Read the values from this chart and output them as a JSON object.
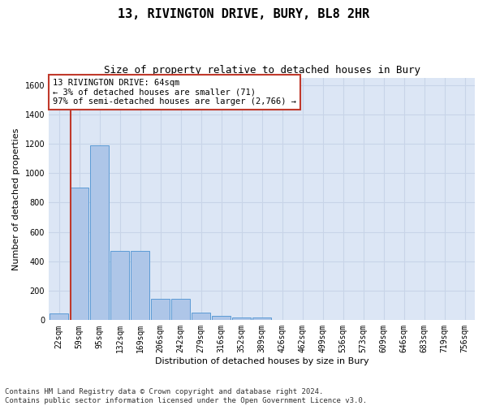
{
  "title": "13, RIVINGTON DRIVE, BURY, BL8 2HR",
  "subtitle": "Size of property relative to detached houses in Bury",
  "xlabel": "Distribution of detached houses by size in Bury",
  "ylabel": "Number of detached properties",
  "bin_labels": [
    "22sqm",
    "59sqm",
    "95sqm",
    "132sqm",
    "169sqm",
    "206sqm",
    "242sqm",
    "279sqm",
    "316sqm",
    "352sqm",
    "389sqm",
    "426sqm",
    "462sqm",
    "499sqm",
    "536sqm",
    "573sqm",
    "609sqm",
    "646sqm",
    "683sqm",
    "719sqm",
    "756sqm"
  ],
  "bar_values": [
    45,
    900,
    1190,
    470,
    470,
    145,
    145,
    50,
    32,
    18,
    18,
    0,
    0,
    0,
    0,
    0,
    0,
    0,
    0,
    0,
    0
  ],
  "bar_color": "#aec6e8",
  "bar_edge_color": "#5b9bd5",
  "vline_color": "#c0392b",
  "vline_x_pos": 0.575,
  "annotation_text": "13 RIVINGTON DRIVE: 64sqm\n← 3% of detached houses are smaller (71)\n97% of semi-detached houses are larger (2,766) →",
  "annotation_box_color": "#c0392b",
  "annotation_bg": "white",
  "ylim": [
    0,
    1650
  ],
  "yticks": [
    0,
    200,
    400,
    600,
    800,
    1000,
    1200,
    1400,
    1600
  ],
  "grid_color": "#c8d4e8",
  "bg_color": "#dce6f5",
  "footer": "Contains HM Land Registry data © Crown copyright and database right 2024.\nContains public sector information licensed under the Open Government Licence v3.0.",
  "title_fontsize": 11,
  "subtitle_fontsize": 9,
  "axis_label_fontsize": 8,
  "tick_fontsize": 7,
  "annotation_fontsize": 7.5,
  "footer_fontsize": 6.5
}
